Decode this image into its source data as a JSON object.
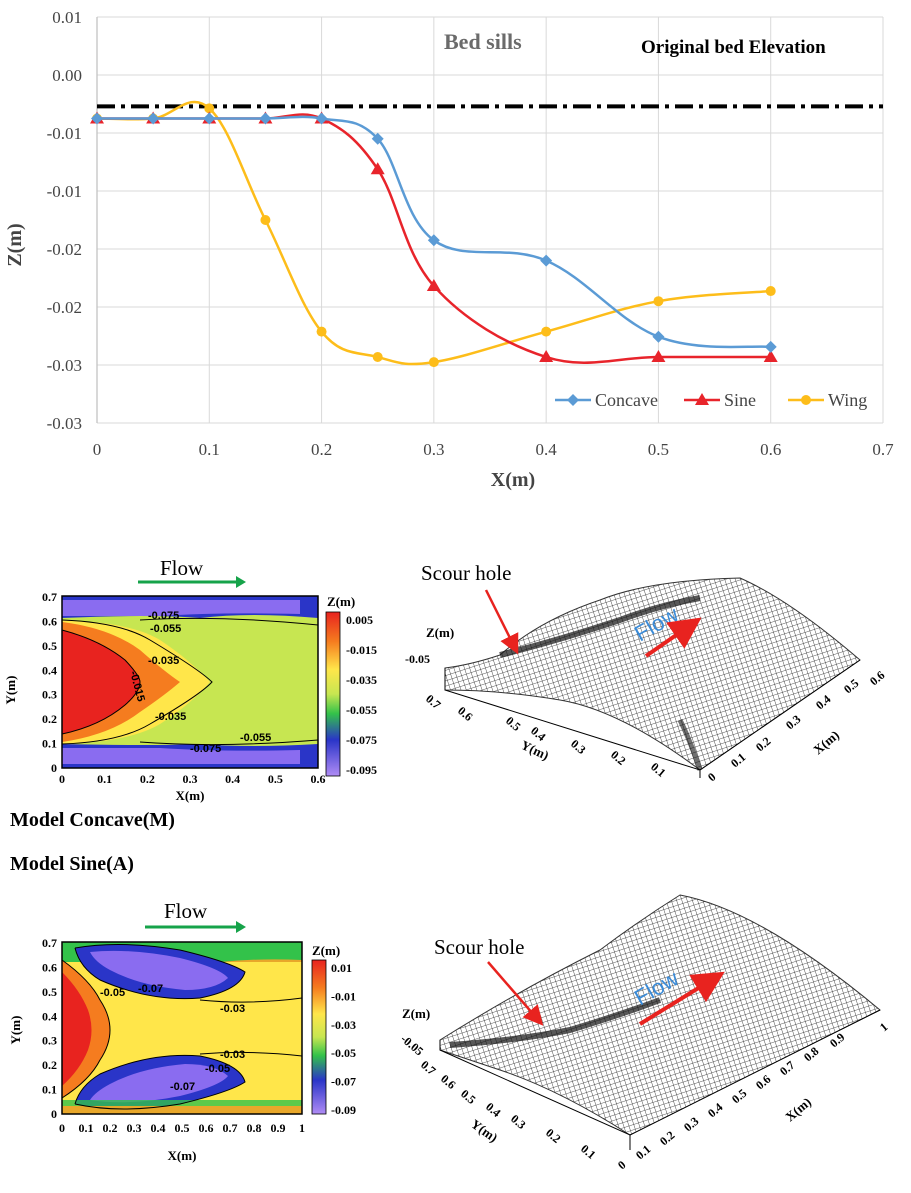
{
  "chart_data": {
    "type": "line",
    "xlabel": "X(m)",
    "ylabel": "Z(m)",
    "xlim": [
      0,
      0.7
    ],
    "ylim": [
      -0.03,
      0.01
    ],
    "x_ticks": [
      "0",
      "0.1",
      "0.2",
      "0.3",
      "0.4",
      "0.5",
      "0.6",
      "0.7"
    ],
    "y_ticks": [
      "0.01",
      "0.00",
      "-0.01",
      "-0.01",
      "-0.02",
      "-0.02",
      "-0.03",
      "-0.03"
    ],
    "grid": true,
    "legend_position": "bottom-right",
    "series": [
      {
        "name": "Concave",
        "color": "#5b9bd5",
        "marker": "diamond",
        "x": [
          0,
          0.05,
          0.1,
          0.15,
          0.2,
          0.25,
          0.3,
          0.4,
          0.5,
          0.6
        ],
        "y": [
          0,
          0,
          0,
          0,
          0,
          -0.002,
          -0.012,
          -0.014,
          -0.0215,
          -0.0225
        ]
      },
      {
        "name": "Sine",
        "color": "#e8242b",
        "marker": "triangle",
        "x": [
          0,
          0.05,
          0.1,
          0.15,
          0.2,
          0.25,
          0.3,
          0.4,
          0.5,
          0.6
        ],
        "y": [
          0,
          0,
          0,
          0,
          0,
          -0.005,
          -0.0165,
          -0.0235,
          -0.0235,
          -0.0235
        ]
      },
      {
        "name": "Wing",
        "color": "#fdbd1a",
        "marker": "circle",
        "x": [
          0,
          0.05,
          0.1,
          0.15,
          0.2,
          0.25,
          0.3,
          0.4,
          0.5,
          0.6
        ],
        "y": [
          0,
          0,
          0.001,
          -0.01,
          -0.021,
          -0.0235,
          -0.024,
          -0.021,
          -0.018,
          -0.017
        ]
      }
    ],
    "reference_line": {
      "label": "Original bed Elevation",
      "y": 0.0012
    },
    "annotation": "Bed sills"
  },
  "panels": {
    "flow_label": "Flow",
    "scour_label": "Scour hole",
    "caption_concave": "Model Concave(M)",
    "caption_sine": "Model Sine(A)",
    "zlabel": "Z(m)",
    "xlabel": "X(m)",
    "ylabel": "Y(m)",
    "concave": {
      "colorbar": [
        "0.005",
        "-0.015",
        "-0.035",
        "-0.055",
        "-0.075",
        "-0.095"
      ],
      "x_ticks": [
        "0",
        "0.1",
        "0.2",
        "0.3",
        "0.4",
        "0.5",
        "0.6"
      ],
      "y_ticks": [
        "0.7",
        "0.6",
        "0.5",
        "0.4",
        "0.3",
        "0.2",
        "0.1",
        "0"
      ],
      "contours": [
        "-0.075",
        "-0.055",
        "-0.035",
        "-0.015",
        "-0.035",
        "-0.055",
        "-0.075"
      ]
    },
    "sine": {
      "colorbar": [
        "0.01",
        "-0.01",
        "-0.03",
        "-0.05",
        "-0.07",
        "-0.09"
      ],
      "x_ticks": [
        "0",
        "0.1",
        "0.2",
        "0.3",
        "0.4",
        "0.5",
        "0.6",
        "0.7",
        "0.8",
        "0.9",
        "1"
      ],
      "y_ticks": [
        "0.7",
        "0.6",
        "0.5",
        "0.4",
        "0.3",
        "0.2",
        "0.1",
        "0"
      ],
      "contours": [
        "-0.05",
        "-0.07",
        "-0.03",
        "-0.03",
        "-0.05",
        "-0.07"
      ]
    }
  }
}
